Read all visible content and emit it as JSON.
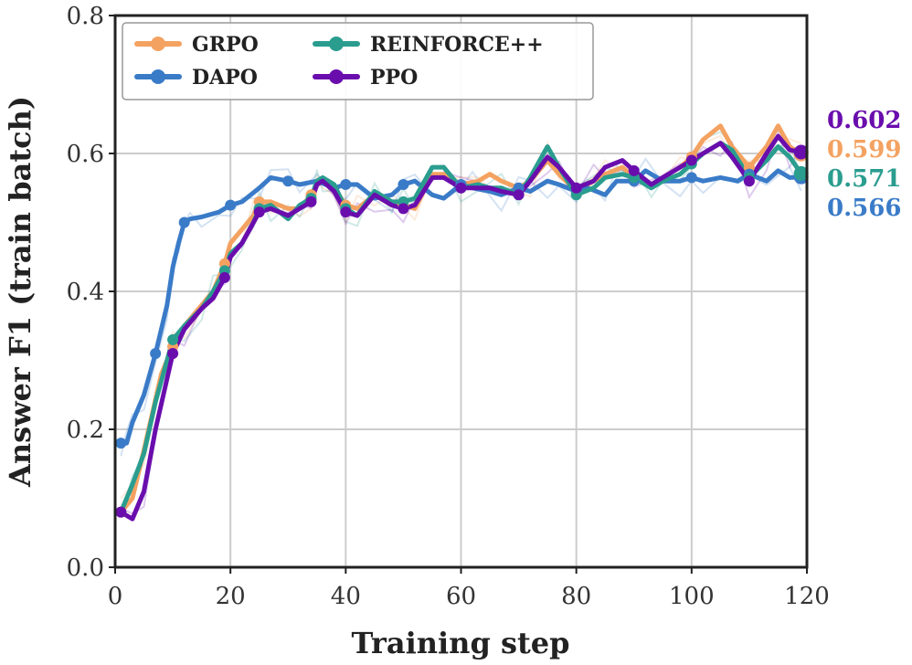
{
  "chart_data": {
    "type": "line",
    "title": "",
    "xlabel": "Training step",
    "ylabel": "Answer F1 (train batch)",
    "xlim": [
      0,
      120
    ],
    "ylim": [
      0.0,
      0.8
    ],
    "xticks": [
      0,
      20,
      40,
      60,
      80,
      100,
      120
    ],
    "yticks": [
      0.0,
      0.2,
      0.4,
      0.6,
      0.8
    ],
    "xtick_labels": [
      "0",
      "20",
      "40",
      "60",
      "80",
      "100",
      "120"
    ],
    "ytick_labels": [
      "0.0",
      "0.2",
      "0.4",
      "0.6",
      "0.8"
    ],
    "grid": true,
    "legend": "top-left",
    "series": [
      {
        "name": "GRPO",
        "color": "#F4A261",
        "end_label": "0.599",
        "points": [
          [
            1,
            0.08
          ],
          [
            3,
            0.1
          ],
          [
            5,
            0.17
          ],
          [
            8,
            0.28
          ],
          [
            10,
            0.32
          ],
          [
            12,
            0.35
          ],
          [
            15,
            0.38
          ],
          [
            17,
            0.4
          ],
          [
            19,
            0.44
          ],
          [
            20,
            0.47
          ],
          [
            22,
            0.49
          ],
          [
            24,
            0.51
          ],
          [
            25,
            0.53
          ],
          [
            27,
            0.53
          ],
          [
            30,
            0.52
          ],
          [
            32,
            0.52
          ],
          [
            34,
            0.54
          ],
          [
            35,
            0.555
          ],
          [
            36,
            0.56
          ],
          [
            38,
            0.55
          ],
          [
            40,
            0.525
          ],
          [
            42,
            0.52
          ],
          [
            45,
            0.54
          ],
          [
            48,
            0.525
          ],
          [
            50,
            0.525
          ],
          [
            52,
            0.52
          ],
          [
            55,
            0.57
          ],
          [
            57,
            0.57
          ],
          [
            60,
            0.555
          ],
          [
            63,
            0.56
          ],
          [
            65,
            0.57
          ],
          [
            67,
            0.56
          ],
          [
            70,
            0.55
          ],
          [
            72,
            0.56
          ],
          [
            75,
            0.59
          ],
          [
            77,
            0.57
          ],
          [
            80,
            0.545
          ],
          [
            83,
            0.56
          ],
          [
            85,
            0.57
          ],
          [
            88,
            0.58
          ],
          [
            90,
            0.565
          ],
          [
            93,
            0.555
          ],
          [
            95,
            0.565
          ],
          [
            98,
            0.58
          ],
          [
            100,
            0.595
          ],
          [
            102,
            0.62
          ],
          [
            105,
            0.64
          ],
          [
            107,
            0.61
          ],
          [
            110,
            0.58
          ],
          [
            113,
            0.61
          ],
          [
            115,
            0.64
          ],
          [
            117,
            0.61
          ],
          [
            119,
            0.599
          ]
        ]
      },
      {
        "name": "DAPO",
        "color": "#3A7BC8",
        "end_label": "0.566",
        "points": [
          [
            1,
            0.18
          ],
          [
            2,
            0.18
          ],
          [
            3,
            0.21
          ],
          [
            5,
            0.25
          ],
          [
            7,
            0.31
          ],
          [
            9,
            0.38
          ],
          [
            10,
            0.435
          ],
          [
            11,
            0.47
          ],
          [
            12,
            0.5
          ],
          [
            13,
            0.505
          ],
          [
            15,
            0.508
          ],
          [
            18,
            0.515
          ],
          [
            20,
            0.525
          ],
          [
            22,
            0.53
          ],
          [
            25,
            0.55
          ],
          [
            27,
            0.565
          ],
          [
            30,
            0.56
          ],
          [
            32,
            0.555
          ],
          [
            35,
            0.56
          ],
          [
            38,
            0.55
          ],
          [
            40,
            0.555
          ],
          [
            42,
            0.555
          ],
          [
            45,
            0.535
          ],
          [
            48,
            0.54
          ],
          [
            50,
            0.555
          ],
          [
            52,
            0.56
          ],
          [
            55,
            0.54
          ],
          [
            57,
            0.535
          ],
          [
            60,
            0.555
          ],
          [
            62,
            0.55
          ],
          [
            65,
            0.545
          ],
          [
            67,
            0.54
          ],
          [
            70,
            0.55
          ],
          [
            72,
            0.545
          ],
          [
            75,
            0.56
          ],
          [
            77,
            0.555
          ],
          [
            80,
            0.545
          ],
          [
            82,
            0.55
          ],
          [
            85,
            0.54
          ],
          [
            87,
            0.56
          ],
          [
            90,
            0.56
          ],
          [
            92,
            0.575
          ],
          [
            95,
            0.56
          ],
          [
            98,
            0.56
          ],
          [
            100,
            0.565
          ],
          [
            102,
            0.56
          ],
          [
            105,
            0.565
          ],
          [
            108,
            0.56
          ],
          [
            110,
            0.57
          ],
          [
            113,
            0.56
          ],
          [
            115,
            0.575
          ],
          [
            117,
            0.565
          ],
          [
            119,
            0.566
          ]
        ]
      },
      {
        "name": "REINFORCE++",
        "color": "#2A9D8F",
        "end_label": "0.571",
        "points": [
          [
            1,
            0.08
          ],
          [
            3,
            0.12
          ],
          [
            5,
            0.165
          ],
          [
            7,
            0.24
          ],
          [
            10,
            0.33
          ],
          [
            12,
            0.35
          ],
          [
            15,
            0.375
          ],
          [
            17,
            0.4
          ],
          [
            19,
            0.43
          ],
          [
            20,
            0.455
          ],
          [
            22,
            0.47
          ],
          [
            24,
            0.5
          ],
          [
            25,
            0.52
          ],
          [
            27,
            0.525
          ],
          [
            30,
            0.505
          ],
          [
            32,
            0.525
          ],
          [
            34,
            0.535
          ],
          [
            35,
            0.56
          ],
          [
            36,
            0.565
          ],
          [
            38,
            0.555
          ],
          [
            40,
            0.52
          ],
          [
            42,
            0.51
          ],
          [
            45,
            0.545
          ],
          [
            48,
            0.53
          ],
          [
            50,
            0.53
          ],
          [
            52,
            0.535
          ],
          [
            55,
            0.58
          ],
          [
            57,
            0.58
          ],
          [
            60,
            0.55
          ],
          [
            63,
            0.555
          ],
          [
            65,
            0.55
          ],
          [
            67,
            0.55
          ],
          [
            70,
            0.54
          ],
          [
            72,
            0.565
          ],
          [
            75,
            0.61
          ],
          [
            77,
            0.58
          ],
          [
            80,
            0.54
          ],
          [
            83,
            0.55
          ],
          [
            85,
            0.565
          ],
          [
            88,
            0.57
          ],
          [
            90,
            0.565
          ],
          [
            93,
            0.55
          ],
          [
            95,
            0.56
          ],
          [
            98,
            0.57
          ],
          [
            100,
            0.585
          ],
          [
            102,
            0.6
          ],
          [
            105,
            0.615
          ],
          [
            107,
            0.605
          ],
          [
            110,
            0.565
          ],
          [
            113,
            0.59
          ],
          [
            115,
            0.61
          ],
          [
            117,
            0.595
          ],
          [
            119,
            0.571
          ]
        ]
      },
      {
        "name": "PPO",
        "color": "#6A0DAD",
        "end_label": "0.602",
        "points": [
          [
            1,
            0.08
          ],
          [
            3,
            0.07
          ],
          [
            5,
            0.11
          ],
          [
            7,
            0.2
          ],
          [
            10,
            0.31
          ],
          [
            12,
            0.345
          ],
          [
            15,
            0.375
          ],
          [
            17,
            0.39
          ],
          [
            19,
            0.42
          ],
          [
            20,
            0.45
          ],
          [
            22,
            0.47
          ],
          [
            24,
            0.5
          ],
          [
            25,
            0.515
          ],
          [
            27,
            0.52
          ],
          [
            30,
            0.51
          ],
          [
            32,
            0.52
          ],
          [
            34,
            0.53
          ],
          [
            35,
            0.555
          ],
          [
            36,
            0.56
          ],
          [
            38,
            0.545
          ],
          [
            40,
            0.515
          ],
          [
            42,
            0.51
          ],
          [
            45,
            0.54
          ],
          [
            48,
            0.525
          ],
          [
            50,
            0.52
          ],
          [
            52,
            0.525
          ],
          [
            55,
            0.565
          ],
          [
            57,
            0.565
          ],
          [
            60,
            0.55
          ],
          [
            63,
            0.55
          ],
          [
            65,
            0.55
          ],
          [
            67,
            0.545
          ],
          [
            70,
            0.54
          ],
          [
            72,
            0.56
          ],
          [
            75,
            0.595
          ],
          [
            77,
            0.58
          ],
          [
            80,
            0.55
          ],
          [
            83,
            0.56
          ],
          [
            85,
            0.58
          ],
          [
            88,
            0.59
          ],
          [
            90,
            0.575
          ],
          [
            93,
            0.555
          ],
          [
            95,
            0.565
          ],
          [
            98,
            0.58
          ],
          [
            100,
            0.59
          ],
          [
            102,
            0.6
          ],
          [
            105,
            0.615
          ],
          [
            107,
            0.595
          ],
          [
            110,
            0.56
          ],
          [
            113,
            0.6
          ],
          [
            115,
            0.625
          ],
          [
            117,
            0.605
          ],
          [
            119,
            0.602
          ]
        ]
      }
    ]
  }
}
